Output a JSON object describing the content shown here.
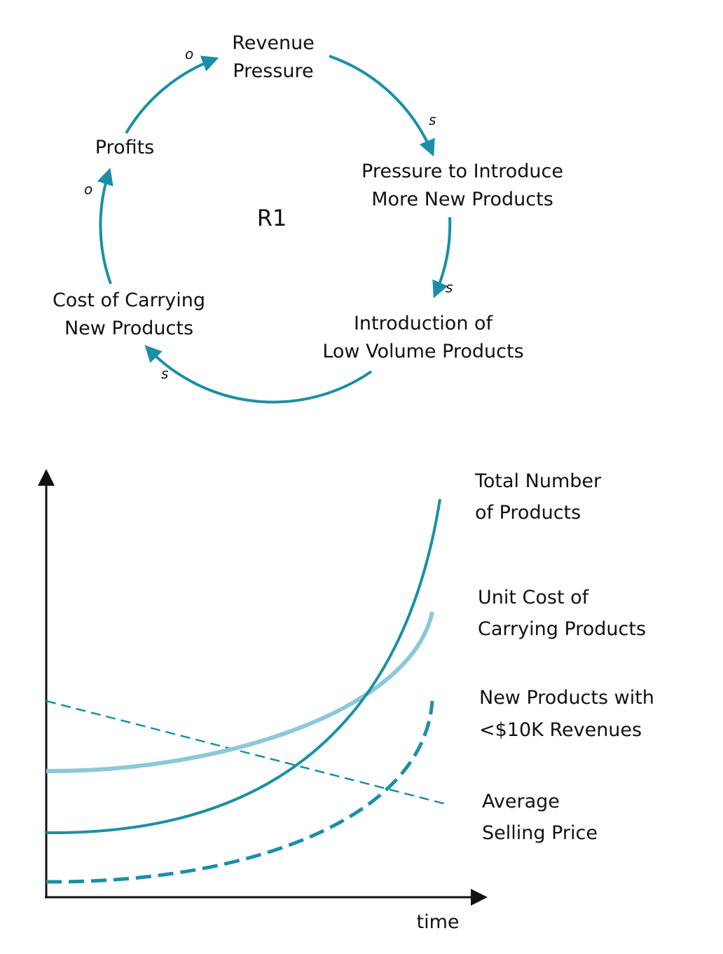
{
  "loop": {
    "label": "R1",
    "nodes": [
      {
        "lines": [
          "Revenue",
          "Pressure"
        ]
      },
      {
        "lines": [
          "Pressure to Introduce",
          "More New Products"
        ]
      },
      {
        "lines": [
          "Introduction of",
          "Low Volume Products"
        ]
      },
      {
        "lines": [
          "Cost of Carrying",
          "New Products"
        ]
      },
      {
        "lines": [
          "Profits"
        ]
      }
    ],
    "links": [
      {
        "polarity": "s"
      },
      {
        "polarity": "s"
      },
      {
        "polarity": "s"
      },
      {
        "polarity": "o"
      },
      {
        "polarity": "o"
      }
    ]
  },
  "graph": {
    "x_axis_label": "time",
    "curves": [
      {
        "lines": [
          "Total Number",
          "of Products"
        ]
      },
      {
        "lines": [
          "Unit Cost of",
          "Carrying Products"
        ]
      },
      {
        "lines": [
          "New Products with",
          "<$10K Revenues"
        ]
      },
      {
        "lines": [
          "Average",
          "Selling Price"
        ]
      }
    ]
  }
}
